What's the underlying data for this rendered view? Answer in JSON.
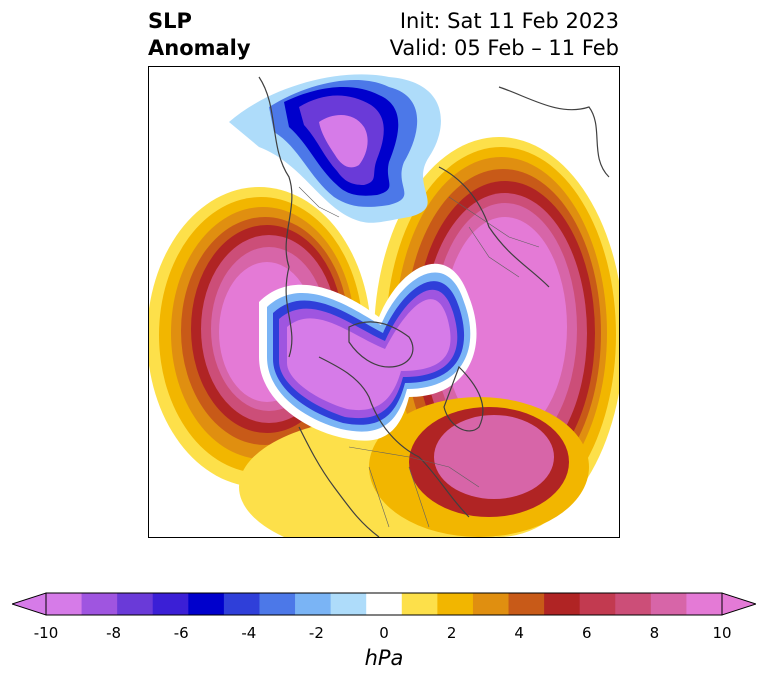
{
  "title": {
    "left_line1": "SLP",
    "left_line2": "Anomaly",
    "right_line1": "Init: Sat 11 Feb 2023",
    "right_line2": "Valid: 05 Feb – 11 Feb"
  },
  "colorbar": {
    "unit": "hPa",
    "ticks": [
      "-10",
      "-8",
      "-6",
      "-4",
      "-2",
      "0",
      "2",
      "4",
      "6",
      "8",
      "10"
    ],
    "colors": [
      "#d67be8",
      "#9f55e0",
      "#6a3ad8",
      "#3b1fd6",
      "#0000cc",
      "#2f3fd9",
      "#4c78e8",
      "#7ab4f5",
      "#aedcfa",
      "#ffffff",
      "#fde04a",
      "#f2b600",
      "#e08f10",
      "#c85a18",
      "#b02424",
      "#c23a50",
      "#cc4e78",
      "#d765a8",
      "#e47ad6"
    ],
    "extend": "both"
  }
}
